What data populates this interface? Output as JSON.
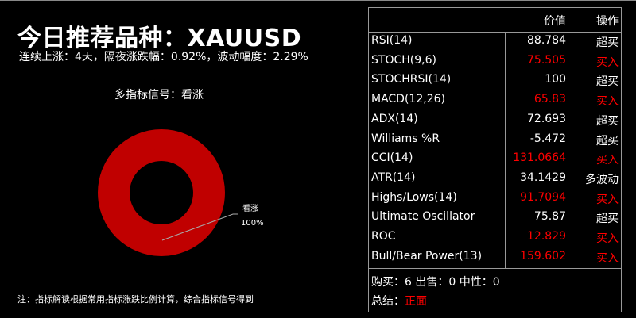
{
  "header": {
    "title": "今日推荐品种：XAUUSD",
    "subtitle": "连续上涨：4天，隔夜涨跌幅：0.92%，波动幅度：2.29%"
  },
  "chart_title": "多指标信号：看涨",
  "chart_data": {
    "type": "pie",
    "donut": true,
    "title": "多指标信号：看涨",
    "slices": [
      {
        "label": "看涨",
        "value": 100,
        "percent_label": "100%",
        "color": "#c00000"
      }
    ]
  },
  "note": "注：指标解读根据常用指标涨跌比例计算，综合指标信号得到",
  "table": {
    "headers": [
      "",
      "价值",
      "操作"
    ],
    "rows": [
      {
        "name": "RSI(14)",
        "value": "88.784",
        "action": "超买",
        "highlight": false
      },
      {
        "name": "STOCH(9,6)",
        "value": "75.505",
        "action": "买入",
        "highlight": true
      },
      {
        "name": "STOCHRSI(14)",
        "value": "100",
        "action": "超买",
        "highlight": false
      },
      {
        "name": "MACD(12,26)",
        "value": "65.83",
        "action": "买入",
        "highlight": true
      },
      {
        "name": "ADX(14)",
        "value": "72.693",
        "action": "超买",
        "highlight": false
      },
      {
        "name": "Williams %R",
        "value": "-5.472",
        "action": "超买",
        "highlight": false
      },
      {
        "name": "CCI(14)",
        "value": "131.0664",
        "action": "买入",
        "highlight": true
      },
      {
        "name": "ATR(14)",
        "value": "34.1429",
        "action": "多波动",
        "highlight": false
      },
      {
        "name": "Highs/Lows(14)",
        "value": "91.7094",
        "action": "买入",
        "highlight": true
      },
      {
        "name": "Ultimate Oscillator",
        "value": "75.87",
        "action": "超买",
        "highlight": false
      },
      {
        "name": "ROC",
        "value": "12.829",
        "action": "买入",
        "highlight": true
      },
      {
        "name": "Bull/Bear Power(13)",
        "value": "159.602",
        "action": "买入",
        "highlight": true
      }
    ],
    "counts": "购买：6 出售：0 中性：0",
    "summary_label": "总结：",
    "summary_value": "正面"
  },
  "colors": {
    "buy": "#ff0000",
    "donut": "#c00000",
    "background": "#000000"
  }
}
